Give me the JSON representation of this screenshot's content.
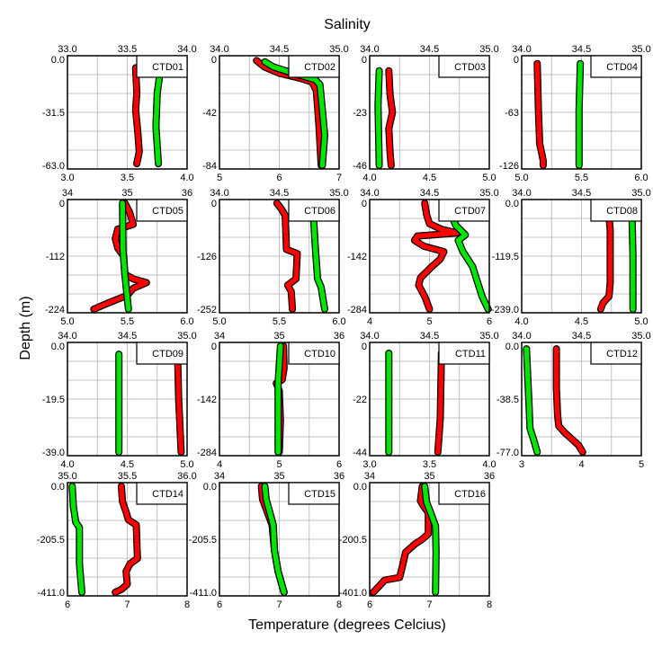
{
  "title": "Salinity",
  "xlabel": "Temperature (degrees Celcius)",
  "ylabel": "Depth (m)",
  "colors": {
    "red": "#ff0000",
    "green": "#00e600",
    "outline": "#000000",
    "grid": "#c0c0c0"
  },
  "chart_data": [
    {
      "type": "line",
      "label": "CTD01",
      "depth_max": 63,
      "depth_ticks": [
        "0.0",
        "-31.5",
        "-63.0"
      ],
      "bottom_range": [
        3,
        4
      ],
      "bottom_ticks": [
        "3.0",
        "3.5",
        "4.0"
      ],
      "top_range": [
        33,
        34
      ],
      "top_ticks": [
        "33.0",
        "33.5",
        "34.0"
      ],
      "red": [
        [
          5,
          3.57
        ],
        [
          20,
          3.58
        ],
        [
          30,
          3.57
        ],
        [
          45,
          3.59
        ],
        [
          55,
          3.6
        ],
        [
          62,
          3.58
        ]
      ],
      "green": [
        [
          5,
          33.75
        ],
        [
          10,
          33.77
        ],
        [
          20,
          33.75
        ],
        [
          40,
          33.74
        ],
        [
          62,
          33.76
        ]
      ]
    },
    {
      "type": "line",
      "label": "CTD02",
      "depth_max": 84,
      "depth_ticks": [
        "0",
        "-42",
        "-84"
      ],
      "bottom_range": [
        5,
        7
      ],
      "bottom_ticks": [
        "5",
        "6",
        "7"
      ],
      "top_range": [
        34,
        35
      ],
      "top_ticks": [
        "34.0",
        "34.5",
        "35.0"
      ],
      "red": [
        [
          1,
          5.62
        ],
        [
          6,
          5.75
        ],
        [
          11,
          6.0
        ],
        [
          15,
          6.35
        ],
        [
          18,
          6.55
        ],
        [
          25,
          6.62
        ],
        [
          50,
          6.66
        ],
        [
          84,
          6.7
        ]
      ],
      "green": [
        [
          2,
          34.38
        ],
        [
          6,
          34.45
        ],
        [
          12,
          34.65
        ],
        [
          16,
          34.8
        ],
        [
          20,
          34.84
        ],
        [
          40,
          34.86
        ],
        [
          60,
          34.88
        ],
        [
          84,
          34.86
        ]
      ]
    },
    {
      "type": "line",
      "label": "CTD03",
      "depth_max": 46,
      "depth_ticks": [
        "0",
        "-23",
        "-46"
      ],
      "bottom_range": [
        4,
        5
      ],
      "bottom_ticks": [
        "4.0",
        "4.5",
        "5.0"
      ],
      "top_range": [
        34,
        35
      ],
      "top_ticks": [
        "34.0",
        "34.5",
        "35.0"
      ],
      "red": [
        [
          5,
          4.16
        ],
        [
          15,
          4.17
        ],
        [
          23,
          4.19
        ],
        [
          30,
          4.16
        ],
        [
          40,
          4.17
        ],
        [
          46,
          4.18
        ]
      ],
      "green": [
        [
          5,
          34.08
        ],
        [
          20,
          34.07
        ],
        [
          46,
          34.08
        ]
      ]
    },
    {
      "type": "line",
      "label": "CTD04",
      "depth_max": 126,
      "depth_ticks": [
        "0",
        "-63",
        "-126"
      ],
      "bottom_range": [
        5,
        6
      ],
      "bottom_ticks": [
        "5.0",
        "5.5",
        "6.0"
      ],
      "top_range": [
        34,
        35
      ],
      "top_ticks": [
        "34.0",
        "34.5",
        "35.0"
      ],
      "red": [
        [
          5,
          5.13
        ],
        [
          60,
          5.14
        ],
        [
          100,
          5.15
        ],
        [
          120,
          5.18
        ],
        [
          126,
          5.18
        ]
      ],
      "green": [
        [
          5,
          34.49
        ],
        [
          60,
          34.48
        ],
        [
          126,
          34.48
        ]
      ]
    },
    {
      "type": "line",
      "label": "CTD05",
      "depth_max": 224,
      "depth_ticks": [
        "0",
        "-112",
        "-224"
      ],
      "bottom_range": [
        5,
        6
      ],
      "bottom_ticks": [
        "5.0",
        "5.5",
        "6.0"
      ],
      "top_range": [
        34,
        36
      ],
      "top_ticks": [
        "34",
        "35",
        "36"
      ],
      "red": [
        [
          0,
          5.48
        ],
        [
          20,
          5.52
        ],
        [
          45,
          5.55
        ],
        [
          55,
          5.42
        ],
        [
          75,
          5.4
        ],
        [
          95,
          5.42
        ],
        [
          112,
          5.47
        ],
        [
          150,
          5.48
        ],
        [
          160,
          5.55
        ],
        [
          168,
          5.66
        ],
        [
          180,
          5.55
        ],
        [
          195,
          5.5
        ],
        [
          210,
          5.35
        ],
        [
          224,
          5.22
        ]
      ],
      "green": [
        [
          0,
          34.92
        ],
        [
          100,
          34.93
        ],
        [
          150,
          34.96
        ],
        [
          224,
          35.02
        ]
      ]
    },
    {
      "type": "line",
      "label": "CTD06",
      "depth_max": 252,
      "depth_ticks": [
        "0",
        "-126",
        "-252"
      ],
      "bottom_range": [
        5,
        6
      ],
      "bottom_ticks": [
        "5.0",
        "5.5",
        "6.0"
      ],
      "top_range": [
        34,
        35
      ],
      "top_ticks": [
        "34.0",
        "34.5",
        "35.0"
      ],
      "red": [
        [
          0,
          5.48
        ],
        [
          15,
          5.52
        ],
        [
          30,
          5.55
        ],
        [
          110,
          5.56
        ],
        [
          120,
          5.65
        ],
        [
          180,
          5.64
        ],
        [
          195,
          5.57
        ],
        [
          210,
          5.6
        ],
        [
          252,
          5.61
        ]
      ],
      "green": [
        [
          0,
          34.78
        ],
        [
          100,
          34.8
        ],
        [
          180,
          34.82
        ],
        [
          200,
          34.85
        ],
        [
          252,
          34.88
        ]
      ]
    },
    {
      "type": "line",
      "label": "CTD07",
      "depth_max": 284,
      "depth_ticks": [
        "0",
        "-142",
        "-284"
      ],
      "bottom_range": [
        4,
        6
      ],
      "bottom_ticks": [
        "4",
        "5",
        "6"
      ],
      "top_range": [
        34,
        35
      ],
      "top_ticks": [
        "34.0",
        "34.5",
        "35.0"
      ],
      "red": [
        [
          0,
          4.92
        ],
        [
          30,
          4.95
        ],
        [
          55,
          5.0
        ],
        [
          70,
          5.2
        ],
        [
          80,
          5.46
        ],
        [
          88,
          4.8
        ],
        [
          100,
          4.75
        ],
        [
          115,
          4.9
        ],
        [
          130,
          5.24
        ],
        [
          150,
          5.18
        ],
        [
          170,
          5.04
        ],
        [
          200,
          4.85
        ],
        [
          220,
          4.82
        ],
        [
          250,
          4.92
        ],
        [
          284,
          5.0
        ]
      ],
      "green": [
        [
          0,
          34.63
        ],
        [
          30,
          34.68
        ],
        [
          60,
          34.72
        ],
        [
          85,
          34.8
        ],
        [
          100,
          34.74
        ],
        [
          130,
          34.78
        ],
        [
          170,
          34.86
        ],
        [
          210,
          34.9
        ],
        [
          250,
          34.94
        ],
        [
          284,
          34.99
        ]
      ]
    },
    {
      "type": "line",
      "label": "CTD08",
      "depth_max": 239,
      "depth_ticks": [
        "0.0",
        "-119.5",
        "-239.0"
      ],
      "bottom_range": [
        4,
        5
      ],
      "bottom_ticks": [
        "4.0",
        "4.5",
        "5.0"
      ],
      "top_range": [
        34,
        35
      ],
      "top_ticks": [
        "34.0",
        "34.5",
        "35.0"
      ],
      "red": [
        [
          0,
          4.72
        ],
        [
          60,
          4.74
        ],
        [
          180,
          4.74
        ],
        [
          210,
          4.73
        ],
        [
          225,
          4.68
        ],
        [
          239,
          4.66
        ]
      ],
      "green": [
        [
          0,
          34.92
        ],
        [
          120,
          34.93
        ],
        [
          239,
          34.93
        ]
      ]
    },
    {
      "type": "line",
      "label": "CTD09",
      "depth_max": 39,
      "depth_ticks": [
        "0.0",
        "-19.5",
        "-39.0"
      ],
      "bottom_range": [
        4,
        5
      ],
      "bottom_ticks": [
        "4.0",
        "4.5",
        "5.0"
      ],
      "top_range": [
        34,
        35
      ],
      "top_ticks": [
        "34.0",
        "34.5",
        "35.0"
      ],
      "red": [
        [
          3,
          4.92
        ],
        [
          20,
          4.93
        ],
        [
          39,
          4.95
        ]
      ],
      "green": [
        [
          3,
          34.43
        ],
        [
          39,
          34.43
        ]
      ]
    },
    {
      "type": "line",
      "label": "CTD10",
      "depth_max": 284,
      "depth_ticks": [
        "0",
        "-142",
        "-284"
      ],
      "bottom_range": [
        4,
        6
      ],
      "bottom_ticks": [
        "4",
        "5",
        "6"
      ],
      "top_range": [
        34,
        36
      ],
      "top_ticks": [
        "34",
        "35",
        "36"
      ],
      "red": [
        [
          0,
          5.07
        ],
        [
          60,
          5.08
        ],
        [
          90,
          5.05
        ],
        [
          100,
          4.95
        ],
        [
          120,
          5.0
        ],
        [
          200,
          5.02
        ],
        [
          284,
          5.0
        ]
      ],
      "green": [
        [
          0,
          35.02
        ],
        [
          100,
          34.98
        ],
        [
          284,
          34.98
        ]
      ]
    },
    {
      "type": "line",
      "label": "CTD11",
      "depth_max": 44,
      "depth_ticks": [
        "0",
        "-22",
        "-44"
      ],
      "bottom_range": [
        3,
        4
      ],
      "bottom_ticks": [
        "3.0",
        "3.5",
        "4.0"
      ],
      "top_range": [
        34,
        35
      ],
      "top_ticks": [
        "34.0",
        "34.5",
        "35.0"
      ],
      "red": [
        [
          3,
          3.6
        ],
        [
          30,
          3.59
        ],
        [
          44,
          3.57
        ]
      ],
      "green": [
        [
          3,
          34.16
        ],
        [
          44,
          34.16
        ]
      ]
    },
    {
      "type": "line",
      "label": "CTD12",
      "depth_max": 77,
      "depth_ticks": [
        "0.0",
        "-38.5",
        "-77.0"
      ],
      "bottom_range": [
        3,
        5
      ],
      "bottom_ticks": [
        "3",
        "4",
        "5"
      ],
      "top_range": [
        34,
        35
      ],
      "top_ticks": [
        "34.0",
        "34.5",
        "35.0"
      ],
      "red": [
        [
          2,
          3.58
        ],
        [
          30,
          3.58
        ],
        [
          50,
          3.6
        ],
        [
          58,
          3.62
        ],
        [
          63,
          3.72
        ],
        [
          68,
          3.85
        ],
        [
          72,
          3.95
        ],
        [
          77,
          4.02
        ]
      ],
      "green": [
        [
          2,
          34.04
        ],
        [
          40,
          34.06
        ],
        [
          60,
          34.07
        ],
        [
          68,
          34.1
        ],
        [
          77,
          34.13
        ]
      ]
    },
    {
      "type": "line",
      "label": "CTD14",
      "depth_max": 411,
      "depth_ticks": [
        "0.0",
        "-205.5",
        "-411.0"
      ],
      "bottom_range": [
        6,
        8
      ],
      "bottom_ticks": [
        "6",
        "7",
        "8"
      ],
      "top_range": [
        35,
        36
      ],
      "top_ticks": [
        "35.0",
        "35.5",
        "36.0"
      ],
      "red": [
        [
          0,
          6.9
        ],
        [
          60,
          6.92
        ],
        [
          100,
          6.98
        ],
        [
          130,
          7.02
        ],
        [
          150,
          7.15
        ],
        [
          280,
          7.17
        ],
        [
          300,
          7.05
        ],
        [
          330,
          6.98
        ],
        [
          380,
          7.0
        ],
        [
          400,
          6.9
        ],
        [
          411,
          6.8
        ]
      ],
      "green": [
        [
          0,
          35.04
        ],
        [
          80,
          35.05
        ],
        [
          140,
          35.07
        ],
        [
          160,
          35.1
        ],
        [
          300,
          35.1
        ],
        [
          411,
          35.12
        ]
      ]
    },
    {
      "type": "line",
      "label": "CTD15",
      "depth_max": 411,
      "depth_ticks": [
        "0.0",
        "-205.5",
        "-411.0"
      ],
      "bottom_range": [
        6,
        8
      ],
      "bottom_ticks": [
        "6",
        "7",
        "8"
      ],
      "top_range": [
        34,
        36
      ],
      "top_ticks": [
        "34",
        "35",
        "36"
      ],
      "red": [
        [
          0,
          6.7
        ],
        [
          50,
          6.72
        ],
        [
          100,
          6.8
        ],
        [
          150,
          6.88
        ],
        [
          250,
          6.92
        ],
        [
          330,
          6.98
        ],
        [
          411,
          7.08
        ]
      ],
      "green": [
        [
          0,
          34.76
        ],
        [
          50,
          34.78
        ],
        [
          100,
          34.84
        ],
        [
          150,
          34.9
        ],
        [
          250,
          34.92
        ],
        [
          330,
          34.98
        ],
        [
          411,
          35.08
        ]
      ]
    },
    {
      "type": "line",
      "label": "CTD16",
      "depth_max": 401,
      "depth_ticks": [
        "0.0",
        "-200.5",
        "-401.0"
      ],
      "bottom_range": [
        6,
        8
      ],
      "bottom_ticks": [
        "6",
        "7",
        "8"
      ],
      "top_range": [
        34,
        36
      ],
      "top_ticks": [
        "34",
        "35",
        "36"
      ],
      "red": [
        [
          0,
          6.88
        ],
        [
          55,
          6.85
        ],
        [
          75,
          6.9
        ],
        [
          100,
          6.98
        ],
        [
          180,
          6.98
        ],
        [
          200,
          6.88
        ],
        [
          220,
          6.75
        ],
        [
          250,
          6.6
        ],
        [
          300,
          6.55
        ],
        [
          345,
          6.5
        ],
        [
          355,
          6.25
        ],
        [
          380,
          6.15
        ],
        [
          401,
          6.06
        ]
      ],
      "green": [
        [
          0,
          34.92
        ],
        [
          60,
          34.95
        ],
        [
          100,
          35.02
        ],
        [
          150,
          35.1
        ],
        [
          250,
          35.11
        ],
        [
          401,
          35.1
        ]
      ]
    }
  ]
}
